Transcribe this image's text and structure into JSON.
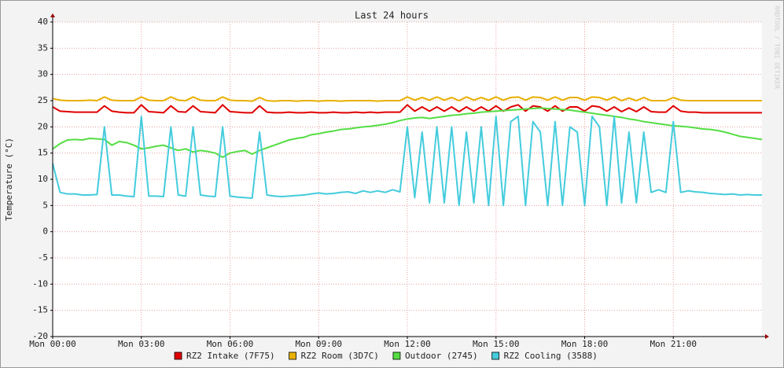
{
  "chart_data": {
    "type": "line",
    "title": "Last 24 hours",
    "y_label": "Temperature (°C)",
    "watermark": "RRDTOOL / TOBI OETIKER",
    "grid": true,
    "legend": "bottom",
    "xlim": [
      0,
      24
    ],
    "xticks": [
      {
        "value": 0,
        "label": "Mon 00:00"
      },
      {
        "value": 3,
        "label": "Mon 03:00"
      },
      {
        "value": 6,
        "label": "Mon 06:00"
      },
      {
        "value": 9,
        "label": "Mon 09:00"
      },
      {
        "value": 12,
        "label": "Mon 12:00"
      },
      {
        "value": 15,
        "label": "Mon 15:00"
      },
      {
        "value": 18,
        "label": "Mon 18:00"
      },
      {
        "value": 21,
        "label": "Mon 21:00"
      }
    ],
    "ylim": [
      -20,
      40
    ],
    "yticks": [
      -20,
      -15,
      -10,
      -5,
      0,
      5,
      10,
      15,
      20,
      25,
      30,
      35,
      40
    ],
    "x": [
      0,
      0.25,
      0.5,
      0.75,
      1,
      1.25,
      1.5,
      1.75,
      2,
      2.25,
      2.5,
      2.75,
      3,
      3.25,
      3.5,
      3.75,
      4,
      4.25,
      4.5,
      4.75,
      5,
      5.25,
      5.5,
      5.75,
      6,
      6.25,
      6.5,
      6.75,
      7,
      7.25,
      7.5,
      7.75,
      8,
      8.25,
      8.5,
      8.75,
      9,
      9.25,
      9.5,
      9.75,
      10,
      10.25,
      10.5,
      10.75,
      11,
      11.25,
      11.5,
      11.75,
      12,
      12.25,
      12.5,
      12.75,
      13,
      13.25,
      13.5,
      13.75,
      14,
      14.25,
      14.5,
      14.75,
      15,
      15.25,
      15.5,
      15.75,
      16,
      16.25,
      16.5,
      16.75,
      17,
      17.25,
      17.5,
      17.75,
      18,
      18.25,
      18.5,
      18.75,
      19,
      19.25,
      19.5,
      19.75,
      20,
      20.25,
      20.5,
      20.75,
      21,
      21.25,
      21.5,
      21.75,
      22,
      22.25,
      22.5,
      22.75,
      23,
      23.25,
      23.5,
      23.75,
      24
    ],
    "series": [
      {
        "name": "RZ2 Intake (7F75)",
        "color": "#e00000",
        "values": [
          23.8,
          23.0,
          22.9,
          22.8,
          22.8,
          22.8,
          22.8,
          24.0,
          23.0,
          22.8,
          22.7,
          22.7,
          24.2,
          22.9,
          22.8,
          22.7,
          24.0,
          22.9,
          22.8,
          24.0,
          22.9,
          22.8,
          22.7,
          24.2,
          22.9,
          22.8,
          22.7,
          22.7,
          24.0,
          22.8,
          22.7,
          22.7,
          22.8,
          22.7,
          22.7,
          22.8,
          22.7,
          22.7,
          22.8,
          22.7,
          22.7,
          22.8,
          22.7,
          22.8,
          22.7,
          22.8,
          22.8,
          22.8,
          24.2,
          23.0,
          23.8,
          23.0,
          23.8,
          23.0,
          23.8,
          22.9,
          23.8,
          23.0,
          23.8,
          23.0,
          24.0,
          23.0,
          23.8,
          24.2,
          23.0,
          24.0,
          23.8,
          23.0,
          24.0,
          23.0,
          23.8,
          23.8,
          23.0,
          24.0,
          23.8,
          23.0,
          23.8,
          22.9,
          23.6,
          22.9,
          23.8,
          22.9,
          22.8,
          22.8,
          24.0,
          23.0,
          22.8,
          22.8,
          22.7,
          22.7,
          22.7,
          22.7,
          22.7,
          22.7,
          22.7,
          22.7,
          22.7
        ]
      },
      {
        "name": "RZ2 Room (3D7C)",
        "color": "#e8b000",
        "values": [
          25.4,
          25.1,
          25.0,
          25.0,
          25.0,
          25.1,
          25.0,
          25.7,
          25.1,
          25.0,
          25.0,
          25.0,
          25.7,
          25.1,
          25.0,
          25.0,
          25.7,
          25.1,
          25.0,
          25.7,
          25.1,
          25.0,
          25.0,
          25.7,
          25.1,
          25.0,
          25.0,
          24.9,
          25.6,
          25.0,
          24.9,
          25.0,
          25.0,
          24.9,
          25.0,
          25.0,
          24.9,
          25.0,
          25.0,
          24.9,
          25.0,
          25.0,
          25.0,
          25.0,
          24.9,
          25.0,
          25.0,
          25.0,
          25.7,
          25.1,
          25.6,
          25.1,
          25.7,
          25.1,
          25.6,
          25.0,
          25.7,
          25.1,
          25.6,
          25.1,
          25.7,
          25.1,
          25.6,
          25.7,
          25.1,
          25.7,
          25.6,
          25.1,
          25.7,
          25.1,
          25.6,
          25.6,
          25.1,
          25.7,
          25.6,
          25.1,
          25.7,
          25.0,
          25.5,
          25.0,
          25.6,
          25.0,
          25.0,
          25.0,
          25.6,
          25.1,
          25.0,
          25.0,
          25.0,
          25.0,
          25.0,
          25.0,
          25.0,
          25.0,
          25.0,
          25.0,
          25.0
        ]
      },
      {
        "name": "Outdoor (2745)",
        "color": "#55dd44",
        "values": [
          15.8,
          16.8,
          17.5,
          17.6,
          17.5,
          17.8,
          17.7,
          17.6,
          16.5,
          17.2,
          17.0,
          16.5,
          15.8,
          16.0,
          16.3,
          16.5,
          16.0,
          15.5,
          15.8,
          15.2,
          15.5,
          15.3,
          15.0,
          14.2,
          15.0,
          15.3,
          15.5,
          14.8,
          15.5,
          16.0,
          16.5,
          17.0,
          17.5,
          17.8,
          18.0,
          18.5,
          18.7,
          19.0,
          19.2,
          19.5,
          19.6,
          19.8,
          20.0,
          20.1,
          20.3,
          20.5,
          20.8,
          21.2,
          21.5,
          21.7,
          21.8,
          21.6,
          21.8,
          22.0,
          22.2,
          22.3,
          22.5,
          22.6,
          22.8,
          22.9,
          23.0,
          23.1,
          23.2,
          23.3,
          23.4,
          23.5,
          23.6,
          23.5,
          23.4,
          23.3,
          23.2,
          23.0,
          22.8,
          22.6,
          22.4,
          22.2,
          22.0,
          21.8,
          21.5,
          21.3,
          21.0,
          20.8,
          20.6,
          20.4,
          20.2,
          20.1,
          20.0,
          19.8,
          19.6,
          19.5,
          19.3,
          19.0,
          18.6,
          18.2,
          18.0,
          17.8,
          17.6
        ]
      },
      {
        "name": "RZ2 Cooling (3588)",
        "color": "#44ccdd",
        "values": [
          13,
          7.5,
          7.2,
          7.2,
          7.0,
          7.0,
          7.1,
          20,
          7.0,
          7.0,
          6.8,
          6.7,
          22,
          6.8,
          6.8,
          6.7,
          20,
          7.0,
          6.8,
          20,
          7.0,
          6.8,
          6.7,
          20,
          6.8,
          6.6,
          6.5,
          6.4,
          19,
          7.0,
          6.8,
          6.7,
          6.8,
          6.9,
          7.0,
          7.2,
          7.4,
          7.2,
          7.3,
          7.5,
          7.6,
          7.3,
          7.8,
          7.5,
          7.8,
          7.5,
          8.0,
          7.6,
          20,
          6.5,
          19,
          5.5,
          20,
          5.5,
          20,
          5.0,
          19,
          5.5,
          20,
          5.0,
          22,
          5.0,
          21,
          22,
          5.0,
          21,
          19,
          5.0,
          21,
          5.0,
          20,
          19,
          5.0,
          22,
          20,
          5.0,
          22,
          5.5,
          19,
          5.5,
          19,
          7.5,
          8.0,
          7.5,
          21,
          7.5,
          7.8,
          7.6,
          7.5,
          7.3,
          7.2,
          7.1,
          7.2,
          7.0,
          7.1,
          7.0,
          7.0
        ]
      }
    ]
  }
}
